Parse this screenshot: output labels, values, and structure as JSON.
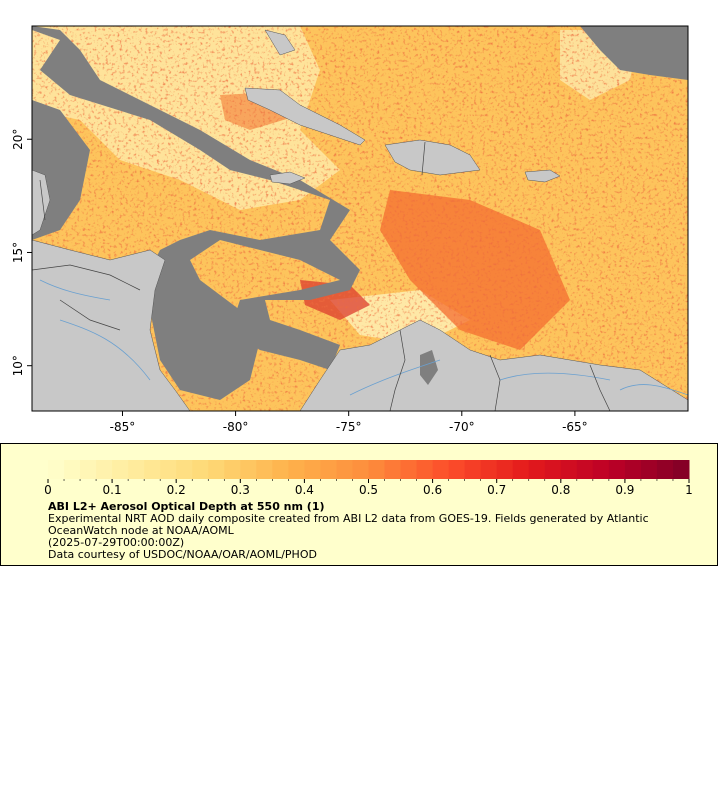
{
  "map": {
    "lon_range": [
      -89,
      -60
    ],
    "lat_range": [
      8,
      25
    ],
    "x_ticks": [
      -85,
      -80,
      -75,
      -70,
      -65
    ],
    "x_tick_labels": [
      "-85°",
      "-80°",
      "-75°",
      "-70°",
      "-65°"
    ],
    "y_ticks": [
      10,
      15,
      20
    ],
    "y_tick_labels": [
      "10°",
      "15°",
      "20°"
    ],
    "colors": {
      "missing_data": "#7f7f7f",
      "land": "#c8c8c8",
      "rivers": "#6aa0d0",
      "borders": "#555555"
    }
  },
  "legend": {
    "colorbar_min": 0,
    "colorbar_max": 1,
    "tick_labels": [
      "0",
      "0.1",
      "0.2",
      "0.3",
      "0.4",
      "0.5",
      "0.6",
      "0.7",
      "0.8",
      "0.9",
      "1"
    ],
    "colorscale": [
      "#ffffcc",
      "#ffeda0",
      "#fed976",
      "#feb24c",
      "#fd8d3c",
      "#fc4e2a",
      "#e31a1c",
      "#bd0026",
      "#800026"
    ],
    "title": "ABI L2+ Aerosol Optical Depth at 550 nm (1)",
    "description": "Experimental NRT AOD daily composite created from ABI L2 data from GOES-19. Fields generated by Atlantic OceanWatch node at NOAA/AOML",
    "date": "(2025-07-29T00:00:00Z)",
    "credit": "Data courtesy of USDOC/NOAA/OAR/AOML/PHOD"
  }
}
